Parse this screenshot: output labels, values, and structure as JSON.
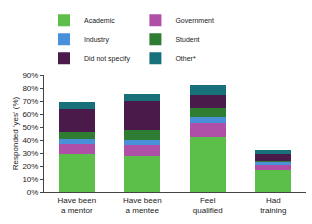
{
  "chart_data": {
    "type": "bar",
    "stacked": true,
    "grid": false,
    "legend": "top",
    "y_label": "Responded 'yes' (%)",
    "categories": [
      "Have been a mentor",
      "Have been a mentee",
      "Feel qualified",
      "Had training"
    ],
    "series": [
      {
        "name": "Academic",
        "color": "#5cbf4a",
        "values": [
          29,
          28,
          42,
          17
        ]
      },
      {
        "name": "Government",
        "color": "#b04fa8",
        "values": [
          8,
          8,
          11,
          4
        ]
      },
      {
        "name": "Industry",
        "color": "#4a90d9",
        "values": [
          3.5,
          4,
          5,
          2
        ]
      },
      {
        "name": "Student",
        "color": "#2e7d32",
        "values": [
          5.5,
          8,
          7,
          1
        ]
      },
      {
        "name": "Did not specify",
        "color": "#4a1a4a",
        "values": [
          18,
          22,
          10,
          5
        ]
      },
      {
        "name": "Other*",
        "color": "#17707a",
        "values": [
          5,
          5.5,
          7,
          3
        ]
      }
    ],
    "ylim": [
      0,
      90
    ],
    "yticks": [
      {
        "value": 0,
        "label": "0%"
      },
      {
        "value": 10,
        "label": "10%"
      },
      {
        "value": 20,
        "label": "20%"
      },
      {
        "value": 30,
        "label": "30%"
      },
      {
        "value": 40,
        "label": "40%"
      },
      {
        "value": 50,
        "label": "50%"
      },
      {
        "value": 60,
        "label": "60%"
      },
      {
        "value": 70,
        "label": "70%"
      },
      {
        "value": 80,
        "label": "80%"
      },
      {
        "value": 90,
        "label": "90%"
      }
    ]
  }
}
